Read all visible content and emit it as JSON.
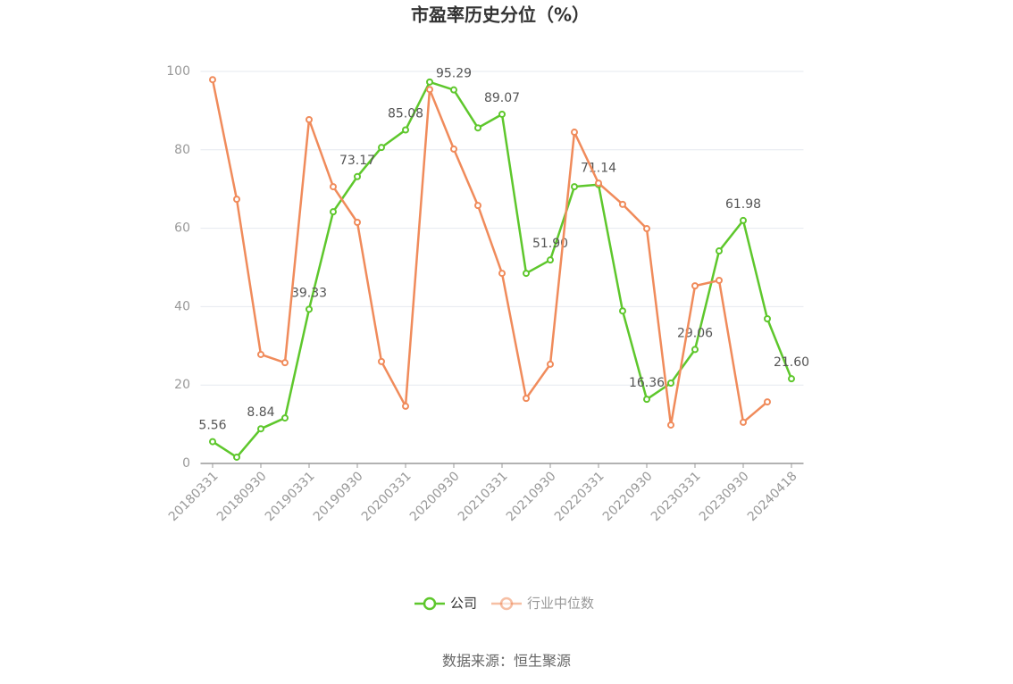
{
  "chart_data": {
    "type": "line",
    "title": "市盈率历史分位（%）",
    "categories": [
      "20180331",
      null,
      "20180930",
      null,
      "20190331",
      null,
      "20190930",
      null,
      "20200331",
      null,
      "20200930",
      null,
      "20210331",
      null,
      "20210930",
      null,
      "20220331",
      null,
      "20220930",
      null,
      "20230331",
      null,
      "20230930",
      null,
      "20240418"
    ],
    "series": [
      {
        "name": "公司",
        "color": "#5ec72c",
        "values": [
          5.56,
          1.6,
          8.84,
          11.6,
          39.33,
          64.2,
          73.17,
          80.6,
          85.08,
          97.3,
          95.29,
          85.6,
          89.07,
          48.5,
          51.9,
          70.6,
          71.14,
          38.9,
          16.36,
          20.5,
          29.06,
          54.2,
          61.98,
          36.9,
          21.6
        ],
        "value_labels": [
          "5.56",
          null,
          "8.84",
          null,
          "39.33",
          null,
          "73.17",
          null,
          "85.08",
          null,
          "95.29",
          null,
          "89.07",
          null,
          "51.90",
          null,
          "71.14",
          null,
          "16.36",
          null,
          "29.06",
          null,
          "61.98",
          null,
          "21.60"
        ]
      },
      {
        "name": "行业中位数",
        "color": "#f08b5b",
        "values": [
          97.9,
          67.4,
          27.8,
          25.7,
          87.7,
          70.6,
          61.5,
          26.0,
          14.6,
          95.4,
          80.2,
          65.8,
          48.5,
          16.6,
          25.3,
          84.5,
          71.5,
          66.1,
          59.9,
          9.8,
          45.3,
          46.7,
          10.5,
          15.7,
          null
        ]
      }
    ],
    "ylim": [
      0,
      100
    ],
    "yticks": [
      0,
      20,
      40,
      60,
      80,
      100
    ],
    "grid": true,
    "source": "数据来源：恒生聚源"
  }
}
